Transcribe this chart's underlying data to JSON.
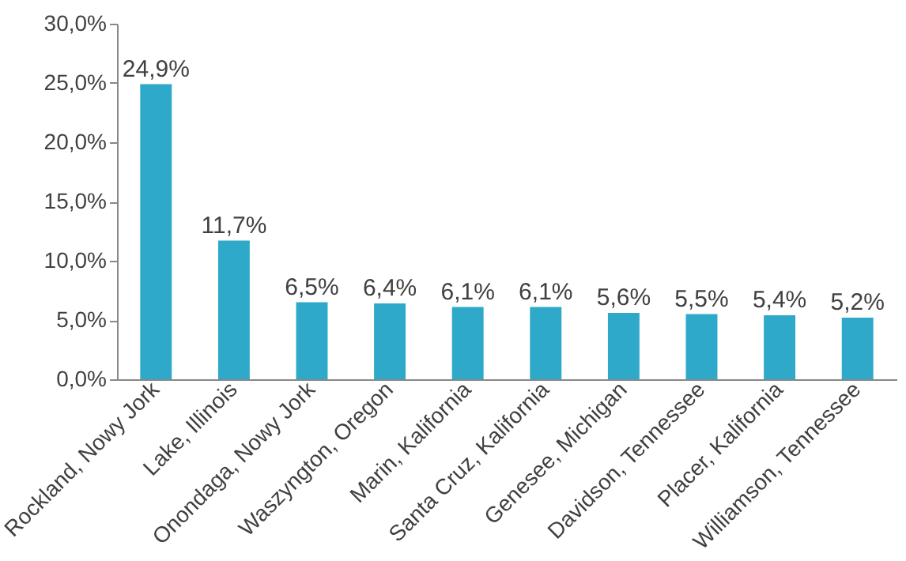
{
  "chart_data": {
    "type": "bar",
    "categories": [
      "Rockland, Nowy Jork",
      "Lake, Illinois",
      "Onondaga, Nowy Jork",
      "Waszyngton, Oregon",
      "Marin, Kalifornia",
      "Santa Cruz, Kalifornia",
      "Genesee, Michigan",
      "Davidson, Tennessee",
      "Placer, Kalifornia",
      "Williamson, Tennessee"
    ],
    "values": [
      24.9,
      11.7,
      6.5,
      6.4,
      6.1,
      6.1,
      5.6,
      5.5,
      5.4,
      5.2
    ],
    "value_labels": [
      "24,9%",
      "11,7%",
      "6,5%",
      "6,4%",
      "6,1%",
      "6,1%",
      "5,6%",
      "5,5%",
      "5,4%",
      "5,2%"
    ],
    "color": "#2fa9c9",
    "ylim": [
      0,
      30
    ],
    "yticks": [
      {
        "value": 0,
        "label": "0,0%"
      },
      {
        "value": 5,
        "label": "5,0%"
      },
      {
        "value": 10,
        "label": "10,0%"
      },
      {
        "value": 15,
        "label": "15,0%"
      },
      {
        "value": 20,
        "label": "20,0%"
      },
      {
        "value": 25,
        "label": "25,0%"
      },
      {
        "value": 30,
        "label": "30,0%"
      }
    ],
    "grid": false
  }
}
